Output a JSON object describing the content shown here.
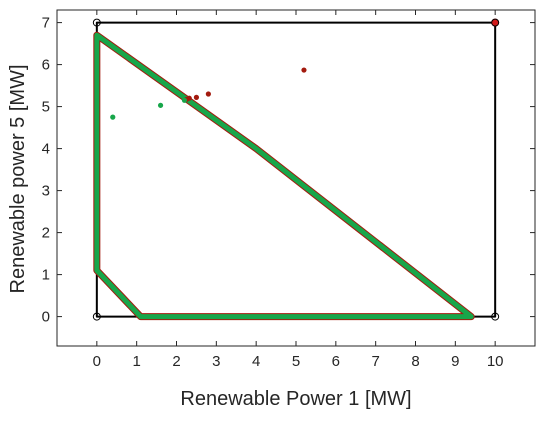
{
  "chart_data": {
    "type": "line",
    "title": "",
    "xlabel": "Renewable Power 1 [MW]",
    "ylabel": "Renewable power 5 [MW]",
    "xlim": [
      -1,
      11
    ],
    "ylim": [
      -0.7,
      7.3
    ],
    "xticks": [
      0,
      1,
      2,
      3,
      4,
      5,
      6,
      7,
      8,
      9,
      10
    ],
    "yticks": [
      0,
      1,
      2,
      3,
      4,
      5,
      6,
      7
    ],
    "grid": false,
    "legend": "none",
    "colors": {
      "bounds": "#000000",
      "red": "#a31a0e",
      "green": "#17a64a",
      "bright_red": "#d11a1a"
    },
    "series": [
      {
        "role": "bounding-box",
        "color": "#000000",
        "x": [
          0,
          10,
          10,
          0,
          0
        ],
        "y": [
          0,
          0,
          7,
          7,
          0
        ]
      },
      {
        "role": "red-region",
        "color": "#a31a0e",
        "x": [
          0,
          0,
          1.1,
          9.4,
          4,
          0
        ],
        "y": [
          6.7,
          1.1,
          0,
          0,
          4,
          6.7
        ]
      },
      {
        "role": "green-region",
        "color": "#17a64a",
        "x": [
          0,
          0,
          1.1,
          9.4,
          4,
          0
        ],
        "y": [
          6.7,
          1.1,
          0,
          0,
          4,
          6.7
        ]
      }
    ],
    "corner_points": {
      "x": [
        0,
        10,
        0,
        10
      ],
      "y": [
        0,
        0,
        7,
        7
      ],
      "style": "open-circle"
    },
    "highlight_point": {
      "x": 10,
      "y": 7,
      "color": "#d11a1a"
    },
    "red_points": {
      "x": [
        2.25,
        2.32,
        2.5,
        2.8,
        5.2
      ],
      "y": [
        5.17,
        5.2,
        5.22,
        5.3,
        5.87
      ],
      "color": "#a31a0e"
    },
    "green_points": {
      "x": [
        0.4,
        1.6,
        2.2
      ],
      "y": [
        4.75,
        5.03,
        5.15
      ],
      "color": "#17a64a"
    }
  }
}
